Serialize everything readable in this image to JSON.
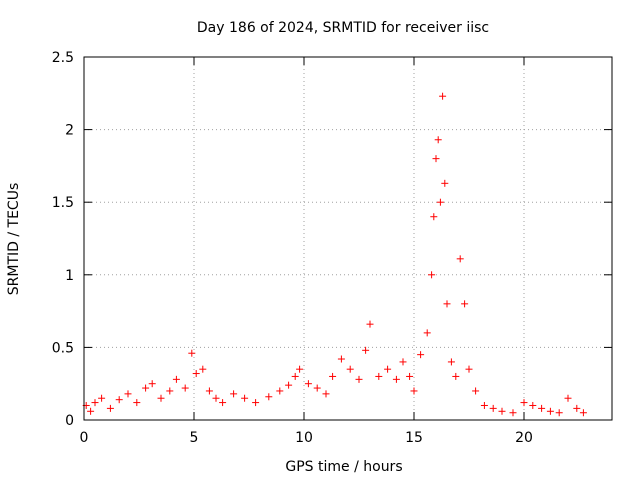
{
  "chart_data": {
    "type": "scatter",
    "title": "Day 186 of 2024, SRMTID for receiver iisc",
    "xlabel": "GPS time / hours",
    "ylabel": "SRMTID / TECUs",
    "xlim": [
      0,
      24
    ],
    "ylim": [
      0,
      2.5
    ],
    "xticks": [
      0,
      5,
      10,
      15,
      20
    ],
    "yticks": [
      0,
      0.5,
      1,
      1.5,
      2,
      2.5
    ],
    "xtick_labels": [
      "0",
      "5",
      "10",
      "15",
      "20"
    ],
    "ytick_labels": [
      "0",
      "0.5",
      "1",
      "1.5",
      "2",
      "2.5"
    ],
    "grid": true,
    "marker": "+",
    "marker_color": "#ff0000",
    "series": [
      {
        "name": "SRMTID",
        "points": [
          [
            0.1,
            0.1
          ],
          [
            0.3,
            0.06
          ],
          [
            0.5,
            0.12
          ],
          [
            0.8,
            0.15
          ],
          [
            1.2,
            0.08
          ],
          [
            1.6,
            0.14
          ],
          [
            2.0,
            0.18
          ],
          [
            2.4,
            0.12
          ],
          [
            2.8,
            0.22
          ],
          [
            3.1,
            0.25
          ],
          [
            3.5,
            0.15
          ],
          [
            3.9,
            0.2
          ],
          [
            4.2,
            0.28
          ],
          [
            4.6,
            0.22
          ],
          [
            4.9,
            0.46
          ],
          [
            5.1,
            0.32
          ],
          [
            5.4,
            0.35
          ],
          [
            5.7,
            0.2
          ],
          [
            6.0,
            0.15
          ],
          [
            6.3,
            0.12
          ],
          [
            6.8,
            0.18
          ],
          [
            7.3,
            0.15
          ],
          [
            7.8,
            0.12
          ],
          [
            8.4,
            0.16
          ],
          [
            8.9,
            0.2
          ],
          [
            9.3,
            0.24
          ],
          [
            9.6,
            0.3
          ],
          [
            9.8,
            0.35
          ],
          [
            10.2,
            0.25
          ],
          [
            10.6,
            0.22
          ],
          [
            11.0,
            0.18
          ],
          [
            11.3,
            0.3
          ],
          [
            11.7,
            0.42
          ],
          [
            12.1,
            0.35
          ],
          [
            12.5,
            0.28
          ],
          [
            12.8,
            0.48
          ],
          [
            13.0,
            0.66
          ],
          [
            13.4,
            0.3
          ],
          [
            13.8,
            0.35
          ],
          [
            14.2,
            0.28
          ],
          [
            14.5,
            0.4
          ],
          [
            14.8,
            0.3
          ],
          [
            15.0,
            0.2
          ],
          [
            15.3,
            0.45
          ],
          [
            15.6,
            0.6
          ],
          [
            15.8,
            1.0
          ],
          [
            15.9,
            1.4
          ],
          [
            16.0,
            1.8
          ],
          [
            16.1,
            1.93
          ],
          [
            16.2,
            1.5
          ],
          [
            16.3,
            2.23
          ],
          [
            16.4,
            1.63
          ],
          [
            16.5,
            0.8
          ],
          [
            16.7,
            0.4
          ],
          [
            16.9,
            0.3
          ],
          [
            17.1,
            1.11
          ],
          [
            17.3,
            0.8
          ],
          [
            17.5,
            0.35
          ],
          [
            17.8,
            0.2
          ],
          [
            18.2,
            0.1
          ],
          [
            18.6,
            0.08
          ],
          [
            19.0,
            0.06
          ],
          [
            19.5,
            0.05
          ],
          [
            20.0,
            0.12
          ],
          [
            20.4,
            0.1
          ],
          [
            20.8,
            0.08
          ],
          [
            21.2,
            0.06
          ],
          [
            21.6,
            0.05
          ],
          [
            22.0,
            0.15
          ],
          [
            22.4,
            0.08
          ],
          [
            22.7,
            0.05
          ]
        ]
      }
    ]
  }
}
